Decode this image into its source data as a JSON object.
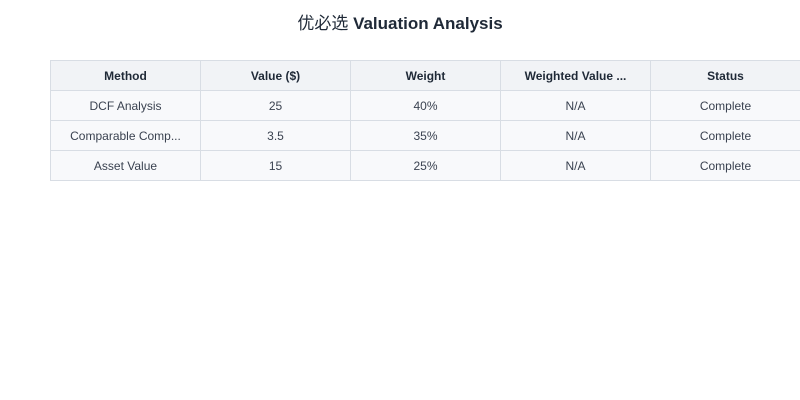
{
  "title": {
    "prefix": "优必选",
    "main": "Valuation Analysis"
  },
  "table": {
    "headers": [
      "Method",
      "Value ($)",
      "Weight",
      "Weighted Value ...",
      "Status"
    ],
    "rows": [
      [
        "DCF Analysis",
        "25",
        "40%",
        "N/A",
        "Complete"
      ],
      [
        "Comparable Comp...",
        "3.5",
        "35%",
        "N/A",
        "Complete"
      ],
      [
        "Asset Value",
        "15",
        "25%",
        "N/A",
        "Complete"
      ]
    ]
  }
}
